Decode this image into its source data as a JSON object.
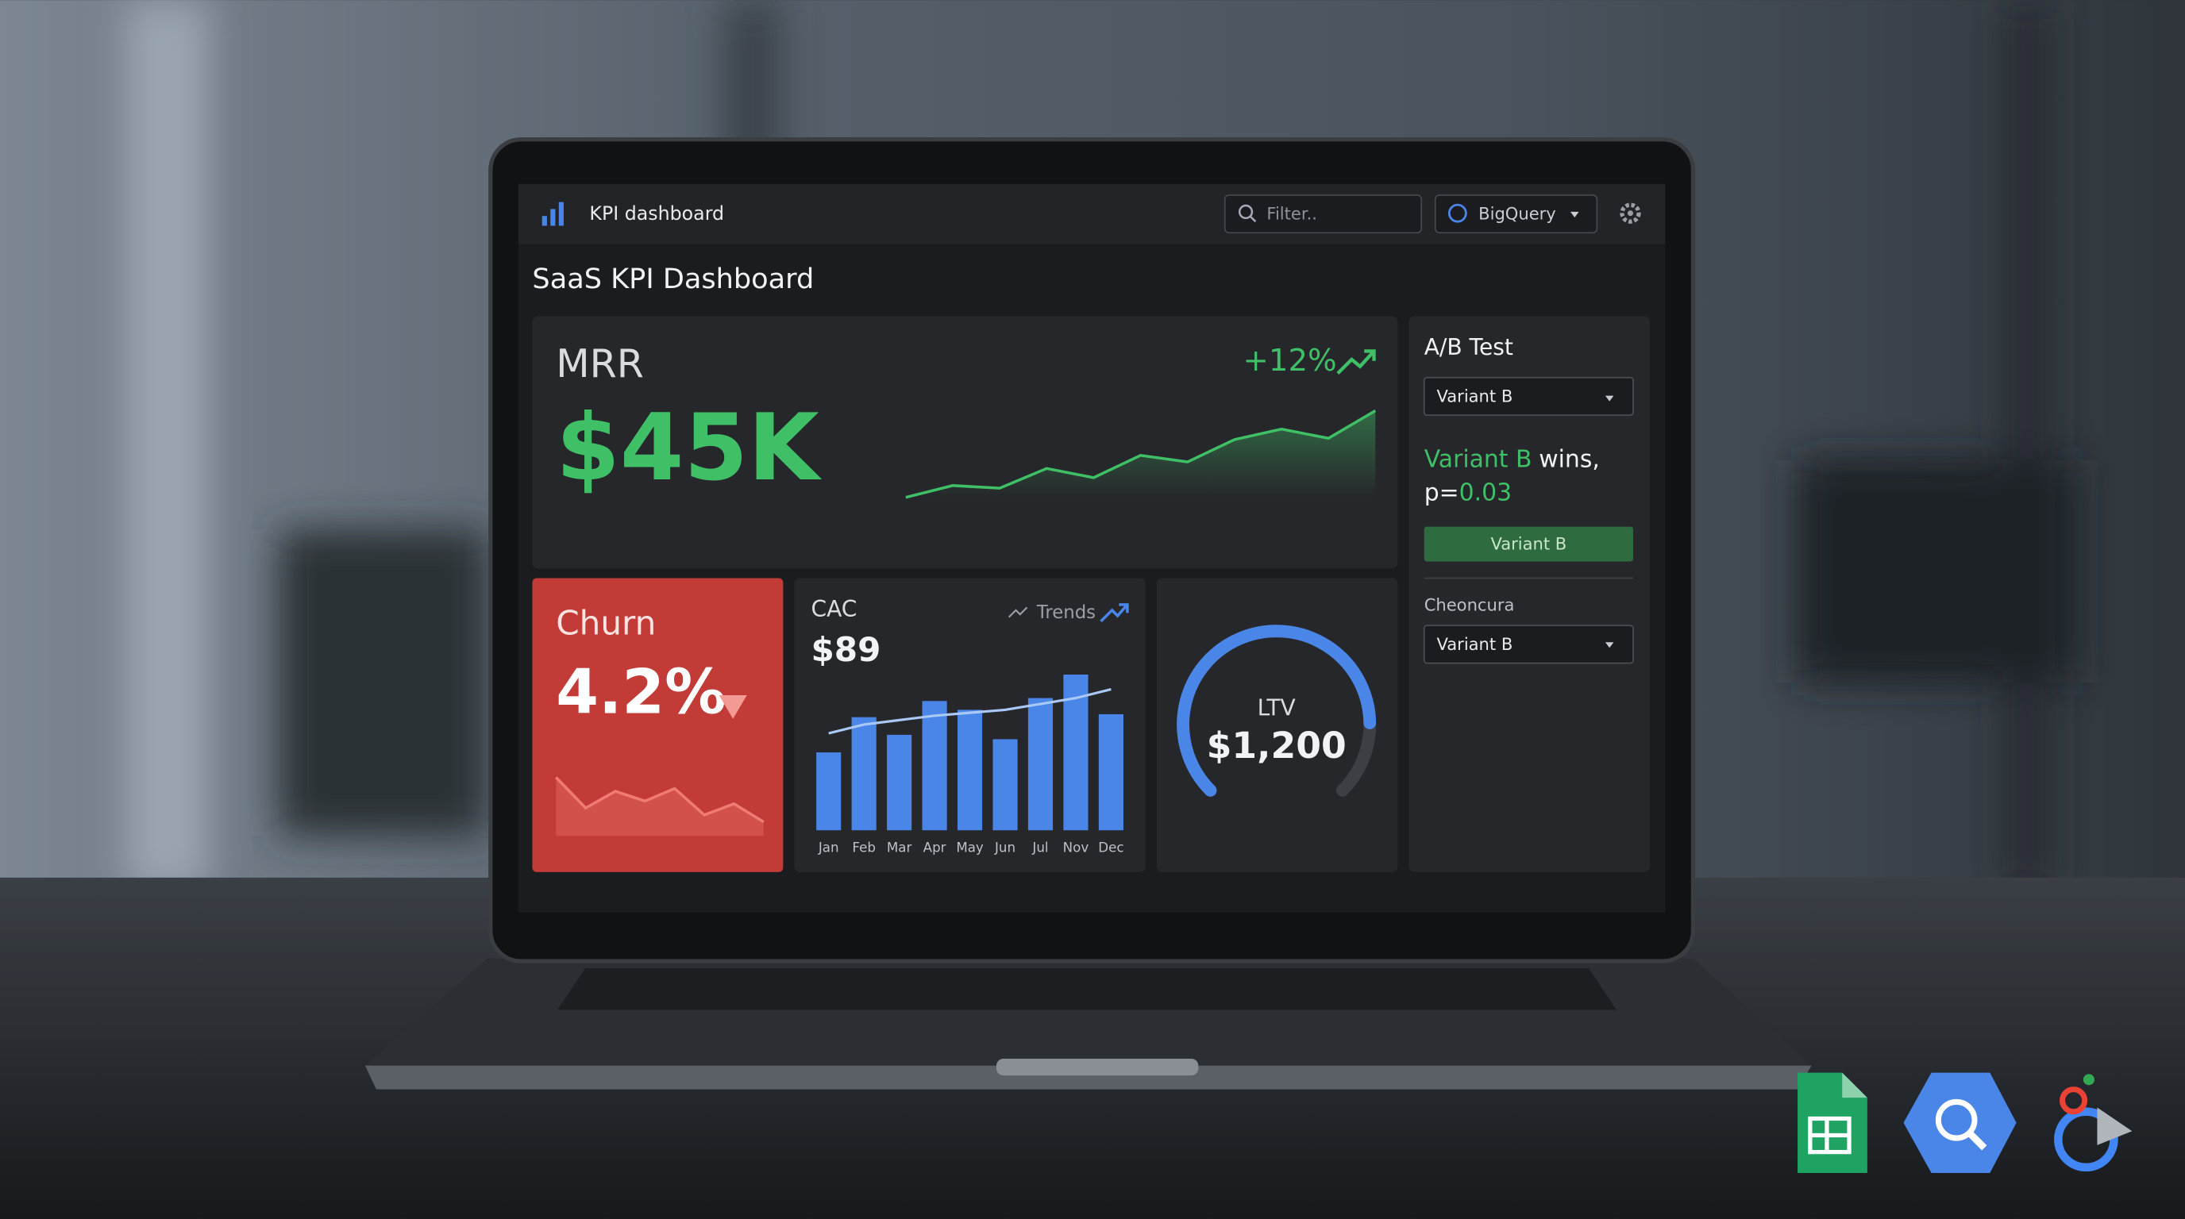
{
  "app_bar": {
    "title": "KPI dashboard",
    "filter_placeholder": "Filter..",
    "source": "BigQuery"
  },
  "page_title": "SaaS KPI Dashboard",
  "mrr": {
    "label": "MRR",
    "value": "$45K",
    "change": "+12%",
    "trend": [
      0,
      9,
      7,
      22,
      15,
      32,
      27,
      44,
      52,
      45,
      66
    ],
    "ylim": [
      0,
      70
    ],
    "color": "#3fbf66"
  },
  "churn": {
    "label": "Churn",
    "value": "4.2%",
    "trend": [
      42,
      20,
      32,
      25,
      34,
      15,
      23,
      10
    ],
    "ylim": [
      0,
      60
    ],
    "color": "#f07a74"
  },
  "cac": {
    "label": "CAC",
    "value": "$89",
    "trends_label": "Trends",
    "chart": {
      "type": "bar",
      "categories": [
        "Jan",
        "Feb",
        "Mar",
        "Apr",
        "May",
        "Jun",
        "Jul",
        "Nov",
        "Dec"
      ],
      "values": [
        53,
        77,
        65,
        88,
        82,
        62,
        90,
        106,
        79
      ],
      "trend": [
        66,
        72,
        75,
        78,
        80,
        82,
        86,
        90,
        96
      ],
      "ylim": [
        0,
        110
      ],
      "color": "#4a86e8",
      "trend_color": "#a9c8f5"
    }
  },
  "ltv": {
    "label": "LTV",
    "value": "$1,200",
    "gauge": {
      "value": 83,
      "range": [
        0,
        100
      ],
      "color": "#4a86e8"
    }
  },
  "ab_test": {
    "title": "A/B Test",
    "variant_select": "Variant B",
    "result": {
      "winner": "Variant B",
      "text": "wins,",
      "p_label": "p=",
      "p_value": "0.03"
    },
    "button": "Variant B",
    "section_label": "Cheoncura",
    "section_select": "Variant B"
  }
}
